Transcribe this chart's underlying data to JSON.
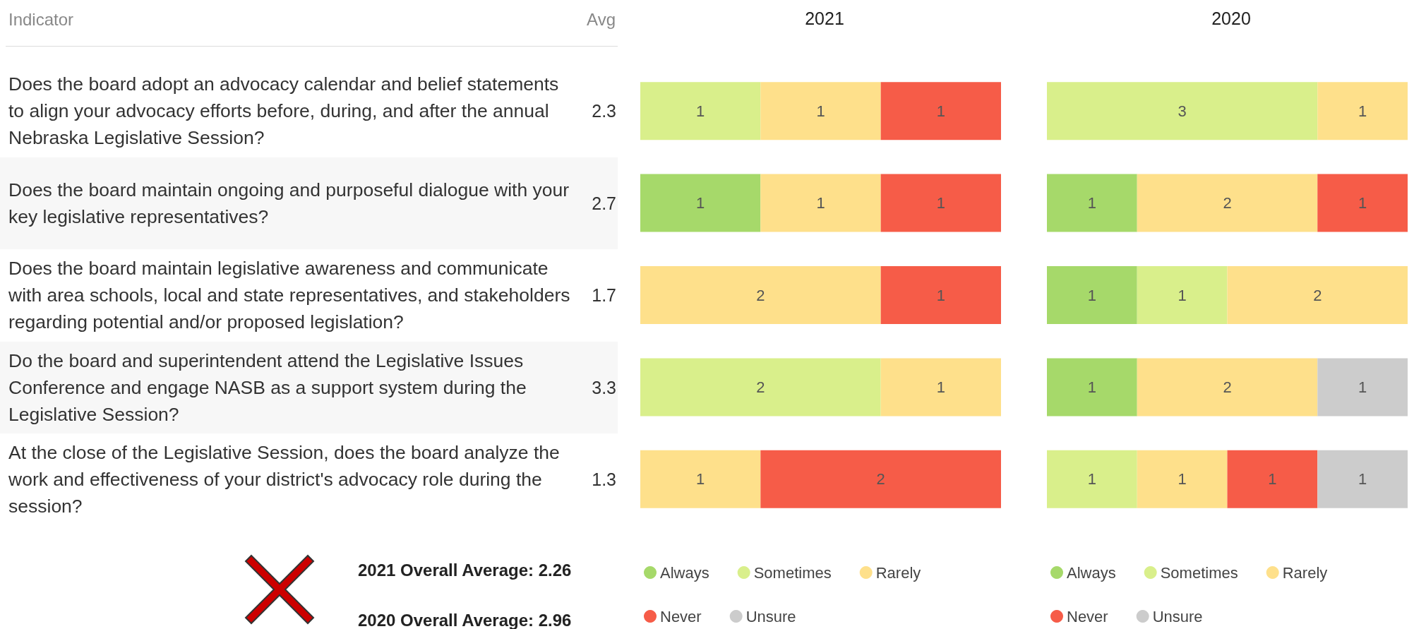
{
  "chart_data": [
    {
      "type": "other",
      "xlabel": "Indicator",
      "ylabel": "Avg",
      "data_labels": true,
      "categories": [
        "Does the board adopt an advocacy calendar and belief statements to align your advocacy efforts before, during, and after the annual Nebraska Legislative Session?",
        "Does the board maintain ongoing and purposeful dialogue with your key legislative representatives?",
        "Does the board maintain legislative awareness and communicate with area schools, local and state representatives, and stakeholders regarding potential and/or proposed legislation?",
        "Do the board and superintendent attend the Legislative Issues Conference and engage NASB as a support system during the Legislative Session?",
        "At the close of the Legislative Session, does the board analyze the work and effectiveness of your district's advocacy role during the session?"
      ],
      "values": [
        2.3,
        2.7,
        1.7,
        3.3,
        1.3
      ],
      "annotations": [
        "2021 Overall Average: 2.26",
        "2020 Overall Average: 2.96"
      ]
    },
    {
      "type": "bar",
      "title": "2021",
      "orientation": "horizontal",
      "stacked": true,
      "data_labels": true,
      "legend": "bottom",
      "tick_labels": false,
      "xlim": [
        0,
        3
      ],
      "categories": [
        null,
        null,
        null,
        null,
        null
      ],
      "series": [
        {
          "name": "Always",
          "color": "#a6d96a",
          "values": [
            null,
            1,
            null,
            null,
            null
          ]
        },
        {
          "name": "Sometimes",
          "color": "#d9ef8b",
          "values": [
            1,
            null,
            null,
            2,
            null
          ]
        },
        {
          "name": "Rarely",
          "color": "#fee08b",
          "values": [
            1,
            1,
            2,
            1,
            1
          ]
        },
        {
          "name": "Never",
          "color": "#f65c48",
          "values": [
            1,
            1,
            1,
            null,
            2
          ]
        },
        {
          "name": "Unsure",
          "color": "#cccccc",
          "values": [
            null,
            null,
            null,
            null,
            null
          ]
        }
      ]
    },
    {
      "type": "bar",
      "title": "2020",
      "orientation": "horizontal",
      "stacked": true,
      "data_labels": true,
      "legend": "bottom",
      "tick_labels": false,
      "xlim": [
        0,
        4
      ],
      "categories": [
        null,
        null,
        null,
        null,
        null
      ],
      "series": [
        {
          "name": "Always",
          "color": "#a6d96a",
          "values": [
            null,
            1,
            1,
            1,
            null
          ]
        },
        {
          "name": "Sometimes",
          "color": "#d9ef8b",
          "values": [
            3,
            null,
            1,
            null,
            1
          ]
        },
        {
          "name": "Rarely",
          "color": "#fee08b",
          "values": [
            1,
            2,
            2,
            2,
            1
          ]
        },
        {
          "name": "Never",
          "color": "#f65c48",
          "values": [
            null,
            1,
            null,
            null,
            1
          ]
        },
        {
          "name": "Unsure",
          "color": "#cccccc",
          "values": [
            null,
            null,
            null,
            1,
            1
          ]
        }
      ]
    }
  ]
}
